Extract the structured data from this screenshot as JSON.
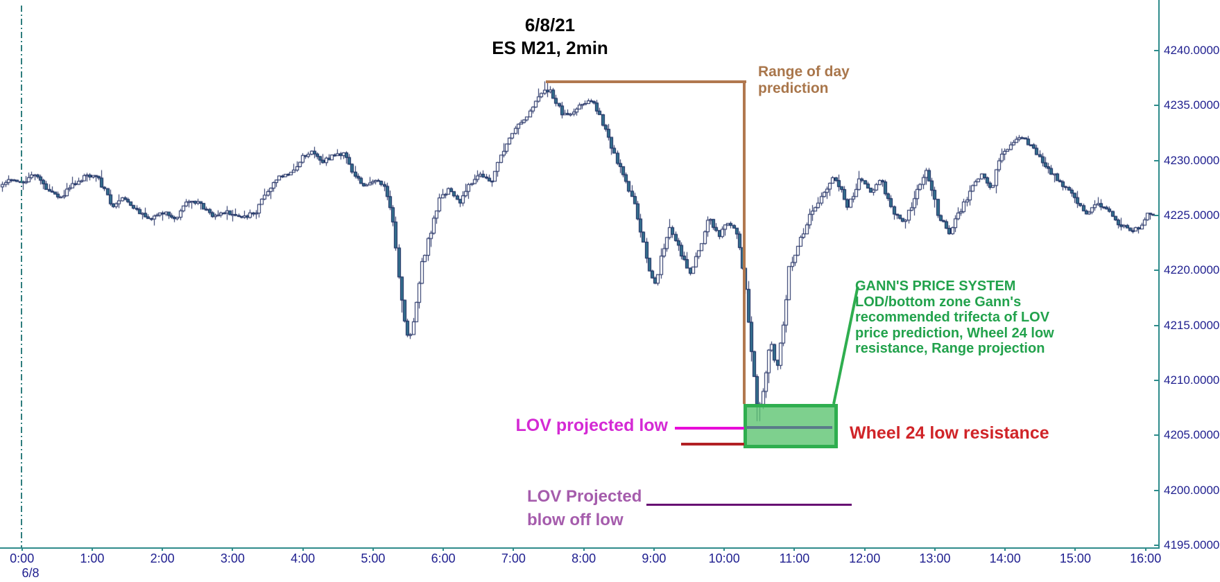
{
  "title": {
    "date": "6/8/21",
    "instrument": "ES M21, 2min"
  },
  "annotations": {
    "range_of_day": {
      "line1": "Range of day",
      "line2": "prediction",
      "color": "#a9764b"
    },
    "gann_system": {
      "line1": "GANN'S PRICE SYSTEM",
      "line2": "LOD/bottom zone Gann's",
      "line3": "recommended trifecta of LOV",
      "line4": "price prediction, Wheel 24 low",
      "line5": "resistance, Range projection",
      "color": "#22a24c"
    },
    "lov_projected_low": {
      "label": "LOV projected low",
      "color": "#d42ad4",
      "level": 4205.7
    },
    "wheel_24": {
      "label": "Wheel 24 low resistance",
      "color": "#d02428",
      "level": 4204.2
    },
    "lov_blow_off": {
      "line1": "LOV Projected",
      "line2": "blow off low",
      "color": "#a55cac",
      "level": 4198.7
    },
    "range_bracket": {
      "high_level": 4237.2,
      "start_time": "7:28",
      "end_time": "10:17",
      "color": "#b1784f"
    },
    "gann_zone_box": {
      "top_level": 4207.9,
      "bottom_level": 4203.9,
      "time_start": "10:17",
      "time_end": "11:38",
      "color": "#2fae4f"
    }
  },
  "axes": {
    "y_ticks": [
      "4240.0000",
      "4235.0000",
      "4230.0000",
      "4225.0000",
      "4220.0000",
      "4215.0000",
      "4210.0000",
      "4205.0000",
      "4200.0000",
      "4195.0000"
    ],
    "x_ticks": [
      "0:00",
      "1:00",
      "2:00",
      "3:00",
      "4:00",
      "5:00",
      "6:00",
      "7:00",
      "8:00",
      "9:00",
      "10:00",
      "11:00",
      "12:00",
      "13:00",
      "14:00",
      "15:00",
      "16:00"
    ],
    "date_label": "6/8"
  },
  "chart_data": {
    "type": "candlestick",
    "title": "6/8/21 ES M21, 2min",
    "symbol": "ES M21",
    "interval": "2min",
    "session_date": "6/8/21",
    "x_axis": {
      "unit": "hour of day",
      "range": [
        0,
        16
      ]
    },
    "y_axis": {
      "range": [
        4195,
        4240
      ],
      "tick_step": 5
    },
    "levels": {
      "range_of_day_high": 4237.2,
      "lov_projected_low": 4205.7,
      "wheel_24_low_resistance": 4204.2,
      "lov_blow_off_low": 4198.7,
      "day_low_zone": [
        4203.9,
        4207.9
      ]
    },
    "price_path_anchors": [
      [
        -0.3,
        4227.6
      ],
      [
        -0.15,
        4228.3
      ],
      [
        0.0,
        4227.9
      ],
      [
        0.2,
        4228.8
      ],
      [
        0.4,
        4227.2
      ],
      [
        0.55,
        4226.6
      ],
      [
        0.75,
        4227.8
      ],
      [
        0.95,
        4228.7
      ],
      [
        1.1,
        4228.4
      ],
      [
        1.3,
        4225.9
      ],
      [
        1.45,
        4226.6
      ],
      [
        1.65,
        4225.4
      ],
      [
        1.85,
        4224.7
      ],
      [
        2.05,
        4225.4
      ],
      [
        2.2,
        4224.6
      ],
      [
        2.4,
        4226.5
      ],
      [
        2.55,
        4226.0
      ],
      [
        2.75,
        4224.9
      ],
      [
        2.95,
        4225.3
      ],
      [
        3.15,
        4224.8
      ],
      [
        3.35,
        4225.3
      ],
      [
        3.5,
        4227.2
      ],
      [
        3.65,
        4228.4
      ],
      [
        3.85,
        4228.8
      ],
      [
        4.0,
        4230.2
      ],
      [
        4.15,
        4231.0
      ],
      [
        4.3,
        4229.9
      ],
      [
        4.45,
        4230.4
      ],
      [
        4.6,
        4230.6
      ],
      [
        4.75,
        4228.6
      ],
      [
        4.9,
        4227.7
      ],
      [
        5.05,
        4228.3
      ],
      [
        5.2,
        4227.4
      ],
      [
        5.32,
        4223.5
      ],
      [
        5.42,
        4217.5
      ],
      [
        5.52,
        4213.2
      ],
      [
        5.6,
        4215.8
      ],
      [
        5.7,
        4220.3
      ],
      [
        5.8,
        4222.7
      ],
      [
        5.95,
        4226.3
      ],
      [
        6.1,
        4227.6
      ],
      [
        6.25,
        4226.2
      ],
      [
        6.4,
        4227.9
      ],
      [
        6.55,
        4228.7
      ],
      [
        6.7,
        4228.1
      ],
      [
        6.85,
        4230.6
      ],
      [
        7.0,
        4232.6
      ],
      [
        7.15,
        4233.7
      ],
      [
        7.3,
        4234.8
      ],
      [
        7.45,
        4236.6
      ],
      [
        7.55,
        4236.2
      ],
      [
        7.7,
        4234.3
      ],
      [
        7.85,
        4234.1
      ],
      [
        8.0,
        4235.2
      ],
      [
        8.15,
        4235.4
      ],
      [
        8.3,
        4233.2
      ],
      [
        8.45,
        4230.5
      ],
      [
        8.6,
        4228.4
      ],
      [
        8.75,
        4226.0
      ],
      [
        8.9,
        4221.5
      ],
      [
        9.02,
        4218.4
      ],
      [
        9.15,
        4222.0
      ],
      [
        9.25,
        4223.9
      ],
      [
        9.4,
        4221.6
      ],
      [
        9.52,
        4219.7
      ],
      [
        9.65,
        4221.6
      ],
      [
        9.8,
        4224.8
      ],
      [
        9.95,
        4223.2
      ],
      [
        10.08,
        4224.6
      ],
      [
        10.22,
        4222.8
      ],
      [
        10.33,
        4218.0
      ],
      [
        10.42,
        4211.5
      ],
      [
        10.5,
        4206.8
      ],
      [
        10.6,
        4210.5
      ],
      [
        10.68,
        4213.5
      ],
      [
        10.76,
        4210.8
      ],
      [
        10.85,
        4214.8
      ],
      [
        10.95,
        4220.4
      ],
      [
        11.08,
        4222.3
      ],
      [
        11.22,
        4224.8
      ],
      [
        11.38,
        4226.4
      ],
      [
        11.55,
        4228.4
      ],
      [
        11.68,
        4227.6
      ],
      [
        11.78,
        4225.8
      ],
      [
        11.95,
        4228.4
      ],
      [
        12.1,
        4227.2
      ],
      [
        12.25,
        4228.2
      ],
      [
        12.42,
        4225.4
      ],
      [
        12.58,
        4224.3
      ],
      [
        12.75,
        4227.0
      ],
      [
        12.9,
        4229.2
      ],
      [
        13.05,
        4225.3
      ],
      [
        13.22,
        4223.4
      ],
      [
        13.4,
        4225.7
      ],
      [
        13.55,
        4227.6
      ],
      [
        13.7,
        4228.9
      ],
      [
        13.82,
        4227.2
      ],
      [
        13.95,
        4230.7
      ],
      [
        14.1,
        4231.4
      ],
      [
        14.25,
        4232.1
      ],
      [
        14.4,
        4231.2
      ],
      [
        14.55,
        4229.9
      ],
      [
        14.72,
        4228.6
      ],
      [
        14.88,
        4227.5
      ],
      [
        15.02,
        4226.5
      ],
      [
        15.18,
        4224.9
      ],
      [
        15.32,
        4226.1
      ],
      [
        15.48,
        4225.7
      ],
      [
        15.62,
        4224.4
      ],
      [
        15.78,
        4223.6
      ],
      [
        15.92,
        4223.9
      ],
      [
        16.05,
        4225.2
      ],
      [
        16.13,
        4225.1
      ]
    ],
    "colors": {
      "up_candle": "#ffffff",
      "down_candle": "#35708e",
      "outline": "#101f57",
      "axis": "#2e8b8b",
      "axis_text": "#1e1e8f"
    }
  }
}
